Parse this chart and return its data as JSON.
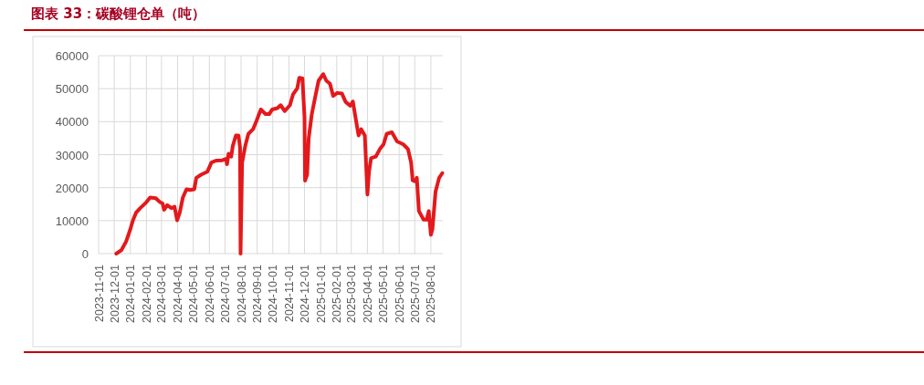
{
  "chart_data": {
    "type": "line",
    "title": "图表 33：碳酸锂仓单（吨）",
    "x": [
      "2023-12-05",
      "2023-12-15",
      "2023-12-24",
      "2024-01-01",
      "2024-01-06",
      "2024-01-12",
      "2024-01-20",
      "2024-02-01",
      "2024-02-08",
      "2024-02-19",
      "2024-02-27",
      "2024-03-03",
      "2024-03-06",
      "2024-03-12",
      "2024-03-20",
      "2024-03-26",
      "2024-03-31",
      "2024-04-05",
      "2024-04-11",
      "2024-04-18",
      "2024-04-25",
      "2024-05-03",
      "2024-05-07",
      "2024-05-16",
      "2024-05-28",
      "2024-06-05",
      "2024-06-14",
      "2024-06-26",
      "2024-07-03",
      "2024-07-05",
      "2024-07-08",
      "2024-07-13",
      "2024-07-16",
      "2024-07-22",
      "2024-07-27",
      "2024-07-30",
      "2024-07-31",
      "2024-08-03",
      "2024-08-09",
      "2024-08-15",
      "2024-08-24",
      "2024-08-31",
      "2024-09-08",
      "2024-09-17",
      "2024-09-24",
      "2024-09-30",
      "2024-10-10",
      "2024-10-16",
      "2024-10-24",
      "2024-11-03",
      "2024-11-09",
      "2024-11-17",
      "2024-11-21",
      "2024-11-27",
      "2024-12-01",
      "2024-12-02",
      "2024-12-06",
      "2024-12-09",
      "2024-12-15",
      "2024-12-22",
      "2024-12-28",
      "2025-01-06",
      "2025-01-12",
      "2025-01-19",
      "2025-01-25",
      "2025-02-02",
      "2025-02-11",
      "2025-02-18",
      "2025-02-27",
      "2025-03-04",
      "2025-03-10",
      "2025-03-15",
      "2025-03-20",
      "2025-03-27",
      "2025-04-01",
      "2025-04-04",
      "2025-04-08",
      "2025-04-17",
      "2025-04-25",
      "2025-05-02",
      "2025-05-08",
      "2025-05-18",
      "2025-05-28",
      "2025-06-09",
      "2025-06-18",
      "2025-06-24",
      "2025-06-27",
      "2025-07-02",
      "2025-07-05",
      "2025-07-09",
      "2025-07-18",
      "2025-07-24",
      "2025-07-28",
      "2025-08-01",
      "2025-08-04",
      "2025-08-10",
      "2025-08-17",
      "2025-08-23"
    ],
    "series": [
      {
        "color": "#e3191c",
        "values": [
          0,
          1100,
          3700,
          7400,
          10100,
          12400,
          13800,
          15600,
          17000,
          16800,
          15600,
          15200,
          13300,
          14700,
          13800,
          14200,
          10100,
          12400,
          17000,
          19500,
          19300,
          19500,
          23000,
          23900,
          24800,
          27600,
          28200,
          28300,
          28700,
          27100,
          30300,
          29400,
          32600,
          35800,
          35800,
          32200,
          0,
          27600,
          32600,
          36300,
          37700,
          40400,
          43700,
          42300,
          42300,
          43700,
          44100,
          45000,
          43200,
          45000,
          48300,
          50100,
          53300,
          53100,
          41400,
          22100,
          23900,
          34900,
          42300,
          47800,
          52400,
          54400,
          52400,
          51500,
          47800,
          48700,
          48500,
          46000,
          44800,
          46100,
          40400,
          35800,
          37700,
          35800,
          17900,
          24800,
          28900,
          29400,
          31700,
          33100,
          36300,
          36800,
          34000,
          33100,
          31700,
          27600,
          22200,
          21900,
          23000,
          12900,
          10300,
          10300,
          12900,
          5700,
          7400,
          18800,
          23000,
          24400
        ]
      }
    ],
    "xlim": [
      "2023-11-01",
      "2025-08-24"
    ],
    "xticks": [
      "2023-11-01",
      "2023-12-01",
      "2024-01-01",
      "2024-02-01",
      "2024-03-01",
      "2024-04-01",
      "2024-05-01",
      "2024-06-01",
      "2024-07-01",
      "2024-08-01",
      "2024-09-01",
      "2024-10-01",
      "2024-11-01",
      "2024-12-01",
      "2025-01-01",
      "2025-02-01",
      "2025-03-01",
      "2025-04-01",
      "2025-05-01",
      "2025-06-01",
      "2025-07-01",
      "2025-08-01"
    ],
    "ylim": [
      0,
      60000
    ],
    "yticks": [
      0,
      10000,
      20000,
      30000,
      40000,
      50000,
      60000
    ],
    "grid": true,
    "marker": "none",
    "line_style": "solid"
  }
}
